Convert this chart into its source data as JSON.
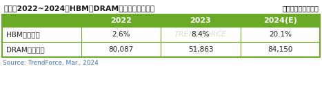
{
  "title": "表一、2022~2024年HBM占DRAM产业产值比重预估",
  "unit": "（单位：百万美元）",
  "header_cols": [
    "",
    "2022",
    "2023",
    "2024(E)"
  ],
  "rows": [
    [
      "HBM营收占比",
      "2.6%",
      "8.4%",
      "20.1%"
    ],
    [
      "DRAM产业营收",
      "80,087",
      "51,863",
      "84,150"
    ]
  ],
  "source": "Source: TrendForce, Mar., 2024",
  "header_bg": "#6aaa27",
  "header_text_color": "#ffffff",
  "border_color": "#6aaa27",
  "title_color": "#1a1a1a",
  "unit_color": "#1a1a1a",
  "data_text_color": "#222222",
  "watermark_color": "#c8d8b0",
  "source_color": "#4472c4",
  "fig_width": 4.67,
  "fig_height": 1.25,
  "dpi": 100
}
